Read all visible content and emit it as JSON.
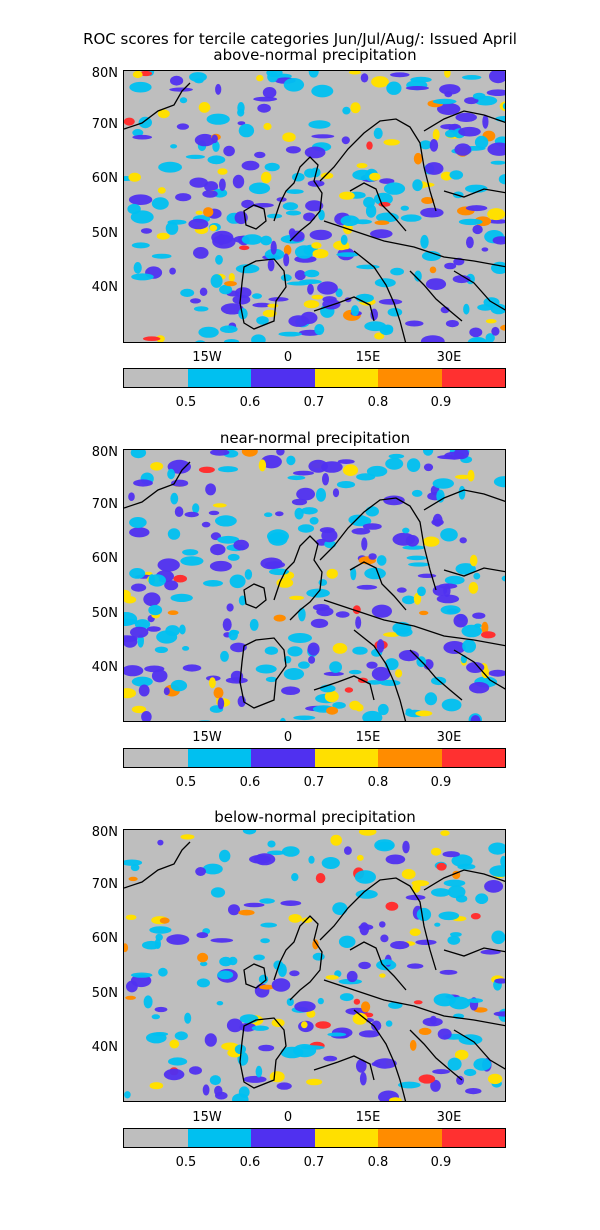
{
  "title_line1": "ROC scores for tercile categories Jun/Jul/Aug/: Issued April",
  "panels": [
    {
      "title": "above-normal precipitation",
      "seed": 11,
      "density": 0.62
    },
    {
      "title": "near-normal precipitation",
      "seed": 23,
      "density": 0.55
    },
    {
      "title": "below-normal precipitation",
      "seed": 37,
      "density": 0.45
    }
  ],
  "lat_labels": [
    "80N",
    "70N",
    "60N",
    "50N",
    "40N"
  ],
  "lon_labels": [
    "15W",
    "0",
    "15E",
    "30E"
  ],
  "colorbar": {
    "colors": [
      "#bebebe",
      "#00c0f0",
      "#5030f0",
      "#ffe000",
      "#ff8c00",
      "#ff3030"
    ],
    "labels": [
      "0.5",
      "0.6",
      "0.7",
      "0.8",
      "0.9"
    ]
  }
}
